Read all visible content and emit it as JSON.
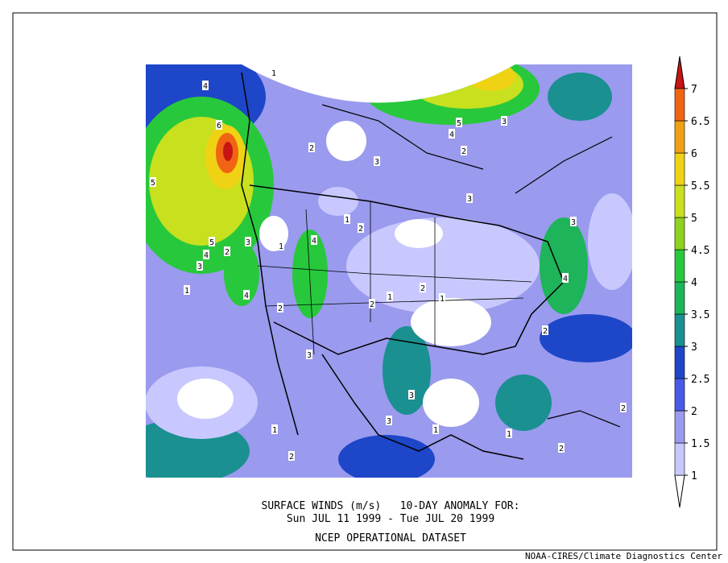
{
  "caption": {
    "line1": "SURFACE WINDS (m/s)   10-DAY ANOMALY FOR:",
    "line2": "Sun JUL 11 1999 - Tue JUL 20 1999",
    "line3": "NCEP OPERATIONAL DATASET"
  },
  "footer": "NOAA-CIRES/Climate Diagnostics Center",
  "colorbar": {
    "levels": [
      1,
      1.5,
      2,
      2.5,
      3,
      3.5,
      4,
      4.5,
      5,
      5.5,
      6,
      6.5,
      7
    ],
    "colors": [
      "#ffffff",
      "#c8c8ff",
      "#9a9aee",
      "#4a5ae6",
      "#1e46c8",
      "#1a9090",
      "#1eb45a",
      "#28c83c",
      "#8cd21e",
      "#c8e01e",
      "#f0d214",
      "#f0a014",
      "#f06414",
      "#c81414"
    ]
  },
  "contour_labels": [
    "4",
    "6",
    "5",
    "5",
    "4",
    "3",
    "1",
    "2",
    "3",
    "4",
    "4",
    "1",
    "1",
    "2",
    "1",
    "2",
    "3",
    "2",
    "1",
    "2",
    "3",
    "1",
    "3",
    "1",
    "2",
    "5",
    "4",
    "3",
    "2",
    "3",
    "3",
    "4",
    "2",
    "1",
    "2",
    "3",
    "1",
    "2",
    "2"
  ]
}
